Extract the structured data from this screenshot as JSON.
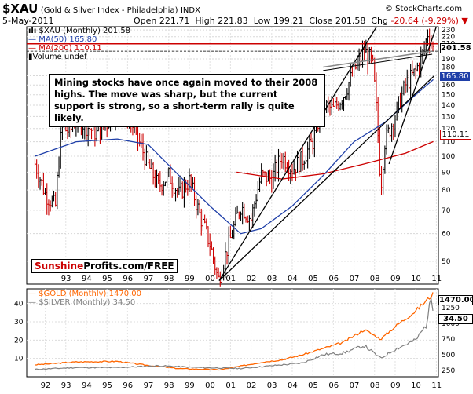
{
  "header": {
    "symbol": "$XAU",
    "name": "(Gold & Silver Index - Philadelphia)",
    "exchange": "INDX",
    "date": "5-May-2011",
    "open_label": "Open",
    "open": "221.71",
    "high_label": "High",
    "high": "221.83",
    "low_label": "Low",
    "low": "199.21",
    "close_label": "Close",
    "close": "201.58",
    "chg_label": "Chg",
    "chg": "-20.64 (-9.29%)",
    "watermark": "© StockCharts.com"
  },
  "legend_top": {
    "series": "$XAU (Monthly) 201.58",
    "ma50": "MA(50) 165.80",
    "ma200": "MA(200) 110.11",
    "volume": "Volume undef"
  },
  "annotation": "Mining stocks have once again moved to their 2008 highs. The move was sharp, but the current support is strong, so a short-term rally is quite likely.",
  "brand": {
    "part1": "Sunshine",
    "part2": "Profits.com/FREE"
  },
  "badges": {
    "close": "201.58",
    "ma50": "165.80",
    "ma200": "110.11",
    "gold": "1470.00",
    "silver": "34.50"
  },
  "legend_bottom": {
    "gold": "$GOLD (Monthly) 1470.00",
    "silver": "$SILVER (Monthly) 34.50"
  },
  "colors": {
    "price": "#000000",
    "down_bar": "#cc0000",
    "ma50": "#1f3fa8",
    "ma200": "#cc0000",
    "gold": "#ff6600",
    "silver": "#808080",
    "resistance": "#cc0000"
  },
  "chart_data": [
    {
      "type": "ohlc",
      "title": "$XAU (Gold & Silver Index - Philadelphia) INDX",
      "scale": "log",
      "x_ticks": [
        "93",
        "94",
        "95",
        "96",
        "97",
        "98",
        "99",
        "00",
        "01",
        "02",
        "03",
        "04",
        "05",
        "06",
        "07",
        "08",
        "09",
        "10",
        "11"
      ],
      "y_ticks_right": [
        230,
        220,
        210,
        200,
        190,
        180,
        170,
        160,
        150,
        140,
        130,
        120,
        110,
        100,
        90,
        80,
        70,
        60,
        50
      ],
      "ylim": [
        43,
        235
      ],
      "grid": true,
      "legend_position": "top-left",
      "series": [
        {
          "name": "$XAU (Monthly)",
          "x": [
            1992.0,
            1992.5,
            1993.0,
            1993.3,
            1993.7,
            1994.0,
            1994.5,
            1995.0,
            1995.5,
            1996.0,
            1996.5,
            1997.0,
            1997.5,
            1998.0,
            1998.5,
            1999.0,
            1999.5,
            2000.0,
            2000.5,
            2000.9,
            2001.5,
            2002.0,
            2002.5,
            2003.0,
            2003.5,
            2004.0,
            2004.5,
            2005.0,
            2005.5,
            2006.0,
            2006.5,
            2007.0,
            2007.5,
            2008.0,
            2008.4,
            2008.8,
            2009.0,
            2009.5,
            2010.0,
            2010.5,
            2010.9,
            2011.1,
            2011.35
          ],
          "values": [
            95,
            78,
            72,
            120,
            118,
            128,
            122,
            116,
            124,
            140,
            132,
            112,
            94,
            82,
            88,
            78,
            85,
            68,
            56,
            44,
            58,
            72,
            66,
            88,
            86,
            100,
            92,
            98,
            110,
            140,
            136,
            150,
            175,
            200,
            185,
            80,
            110,
            130,
            160,
            175,
            200,
            228,
            201.58
          ]
        },
        {
          "name": "MA(50)",
          "x": [
            1992.0,
            1994.0,
            1996.0,
            1997.5,
            1999.0,
            2000.5,
            2002.0,
            2003.0,
            2004.5,
            2006.0,
            2007.5,
            2009.0,
            2010.5,
            2011.35
          ],
          "values": [
            100,
            110,
            112,
            108,
            88,
            72,
            60,
            62,
            72,
            88,
            110,
            125,
            150,
            165.8
          ]
        },
        {
          "name": "MA(200)",
          "x": [
            2001.8,
            2004,
            2006,
            2008,
            2010,
            2011.35
          ],
          "values": [
            90,
            86,
            89,
            95,
            102,
            110.11
          ]
        }
      ]
    },
    {
      "type": "line",
      "x_ticks": [
        "92",
        "93",
        "94",
        "95",
        "96",
        "97",
        "98",
        "99",
        "00",
        "01",
        "02",
        "03",
        "04",
        "05",
        "06",
        "07",
        "08",
        "09",
        "10",
        "11"
      ],
      "y_ticks_left": [
        10,
        20,
        30,
        40
      ],
      "y_ticks_right": [
        250,
        500,
        750,
        1000,
        1250
      ],
      "series": [
        {
          "name": "$GOLD (Monthly)",
          "axis": "right",
          "x": [
            1992,
            1994,
            1996,
            1997.5,
            1999,
            2001,
            2002,
            2003,
            2004,
            2005,
            2006,
            2007,
            2008,
            2008.8,
            2009.5,
            2010.5,
            2011.35
          ],
          "values": [
            340,
            385,
            395,
            330,
            280,
            260,
            320,
            380,
            420,
            500,
            600,
            700,
            900,
            750,
            950,
            1200,
            1470
          ]
        },
        {
          "name": "$SILVER (Monthly)",
          "axis": "left",
          "x": [
            1992,
            1994,
            1996,
            1998,
            2000,
            2002,
            2004,
            2005,
            2006,
            2007,
            2008,
            2008.8,
            2009.5,
            2010.5,
            2011.0,
            2011.3,
            2011.35
          ],
          "values": [
            4,
            5,
            5,
            6,
            5,
            4.5,
            6.5,
            7.5,
            12,
            13,
            17,
            10,
            15,
            20,
            28,
            46,
            34.5
          ]
        }
      ]
    }
  ]
}
